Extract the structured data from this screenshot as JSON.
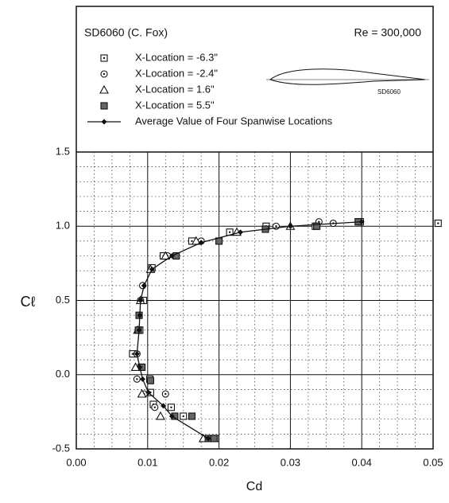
{
  "chart_data": {
    "type": "scatter",
    "title": "SD6060 (C. Fox)",
    "subtitle": "Re = 300,000",
    "airfoil_label": "SD6060",
    "xlabel": "Cd",
    "ylabel": "Cℓ",
    "xlim": [
      0,
      0.05
    ],
    "ylim": [
      -0.5,
      1.5
    ],
    "xticks": [
      {
        "value": 0,
        "label": "0.00"
      },
      0.01,
      0.02,
      0.03,
      0.04,
      0.05
    ],
    "yticks": [
      -0.5,
      {
        "value": 0,
        "label": "0.0"
      },
      0.5,
      {
        "value": 1,
        "label": "1.0"
      },
      1.5
    ],
    "grid": true,
    "minor_grid": true,
    "series": [
      {
        "name": "X-Location = -6.3\"",
        "color": "#111111",
        "marker": "square-dot",
        "x": [
          0.0507,
          0.0398,
          0.0335,
          0.0266,
          0.0215,
          0.0162,
          0.0122,
          0.0106,
          0.0094,
          0.0089,
          0.0079,
          0.0091,
          0.0103,
          0.0104,
          0.0108,
          0.0133,
          0.015,
          0.0195
        ],
        "values": [
          1.02,
          1.03,
          1.0,
          1.0,
          0.96,
          0.9,
          0.8,
          0.72,
          0.5,
          0.3,
          0.14,
          0.05,
          -0.03,
          -0.12,
          -0.2,
          -0.22,
          -0.28,
          -0.43
        ]
      },
      {
        "name": "X-Location = -2.4\"",
        "color": "#111111",
        "marker": "circle-dot",
        "x": [
          0.036,
          0.034,
          0.028,
          0.0175,
          0.0128,
          0.0093,
          0.009,
          0.0085,
          0.0085,
          0.0095,
          0.0125,
          0.011
        ],
        "values": [
          1.02,
          1.03,
          1.0,
          0.9,
          0.8,
          0.6,
          0.5,
          0.14,
          -0.03,
          -0.13,
          -0.13,
          -0.22
        ]
      },
      {
        "name": "X-Location =  1.6\"",
        "color": "#111111",
        "marker": "triangle",
        "x": [
          0.03,
          0.0225,
          0.0168,
          0.0125,
          0.0104,
          0.009,
          0.0086,
          0.0083,
          0.0092,
          0.0118,
          0.0178
        ],
        "values": [
          1.0,
          0.96,
          0.9,
          0.8,
          0.71,
          0.5,
          0.3,
          0.05,
          -0.13,
          -0.28,
          -0.43
        ]
      },
      {
        "name": "X-Location =  5.5\"",
        "color": "#111111",
        "marker": "filled-square",
        "x": [
          0.0395,
          0.0337,
          0.0265,
          0.02,
          0.014,
          0.0088,
          0.0087,
          0.0092,
          0.0104,
          0.0138,
          0.0162,
          0.0185,
          0.0193
        ],
        "values": [
          1.03,
          1.0,
          0.98,
          0.9,
          0.8,
          0.4,
          0.3,
          0.05,
          -0.04,
          -0.28,
          -0.28,
          -0.43,
          -0.43
        ]
      },
      {
        "name": "Average Value of Four Spanwise Locations",
        "color": "#111111",
        "marker": "diamond-line",
        "x": [
          0.04,
          0.03,
          0.023,
          0.0175,
          0.0134,
          0.0106,
          0.0095,
          0.009,
          0.0089,
          0.0088,
          0.0085,
          0.0089,
          0.0093,
          0.0101,
          0.0122,
          0.0134,
          0.0185
        ],
        "values": [
          1.03,
          1.0,
          0.96,
          0.89,
          0.8,
          0.71,
          0.6,
          0.5,
          0.4,
          0.3,
          0.14,
          0.05,
          -0.03,
          -0.12,
          -0.21,
          -0.28,
          -0.43
        ]
      }
    ]
  }
}
